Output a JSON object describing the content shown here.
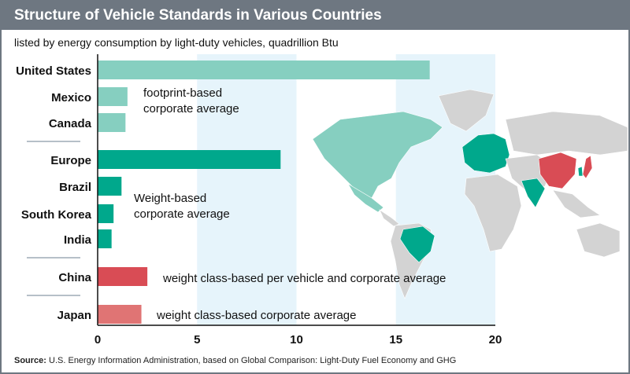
{
  "title": "Structure of Vehicle Standards in Various Countries",
  "subtitle": "listed by energy consumption by light-duty vehicles, quadrillion Btu",
  "source_label": "Source:",
  "source_text": "U.S. Energy Information Administration, based on Global Comparison: Light-Duty Fuel Economy and GHG",
  "chart_data": {
    "type": "bar",
    "orientation": "horizontal",
    "categories": [
      "United States",
      "Mexico",
      "Canada",
      "Europe",
      "Brazil",
      "South Korea",
      "India",
      "China",
      "Japan"
    ],
    "values": [
      16.7,
      1.5,
      1.4,
      9.2,
      1.2,
      0.8,
      0.7,
      2.5,
      2.2
    ],
    "colors": [
      "#86cfc0",
      "#86cfc0",
      "#86cfc0",
      "#00a88c",
      "#00a88c",
      "#00a88c",
      "#00a88c",
      "#d94c55",
      "#e07474"
    ],
    "xlim": [
      0,
      20
    ],
    "xticks": [
      "0",
      "5",
      "10",
      "15",
      "20"
    ],
    "shaded_bands": [
      [
        5,
        10
      ],
      [
        15,
        20
      ]
    ],
    "groups": [
      {
        "label": "footprint-based corporate average",
        "lines": [
          "footprint-based",
          "corporate average"
        ],
        "categories": [
          "United States",
          "Mexico",
          "Canada"
        ]
      },
      {
        "label": "Weight-based corporate average",
        "lines": [
          "Weight-based",
          "corporate average"
        ],
        "categories": [
          "Europe",
          "Brazil",
          "South Korea",
          "India"
        ]
      },
      {
        "label": "weight class-based per vehicle and corporate average",
        "lines": [
          "weight class-based per vehicle and corporate average"
        ],
        "categories": [
          "China"
        ]
      },
      {
        "label": "weight class-based corporate average",
        "lines": [
          "weight class-based corporate average"
        ],
        "categories": [
          "Japan"
        ]
      }
    ],
    "grid": false,
    "legend": "none"
  },
  "map": {
    "colors": {
      "land": "#d3d3d3",
      "footprint": "#86cfc0",
      "weight": "#00a88c",
      "china": "#d94c55",
      "japan": "#e07474",
      "band": "#e6f4fb"
    }
  }
}
